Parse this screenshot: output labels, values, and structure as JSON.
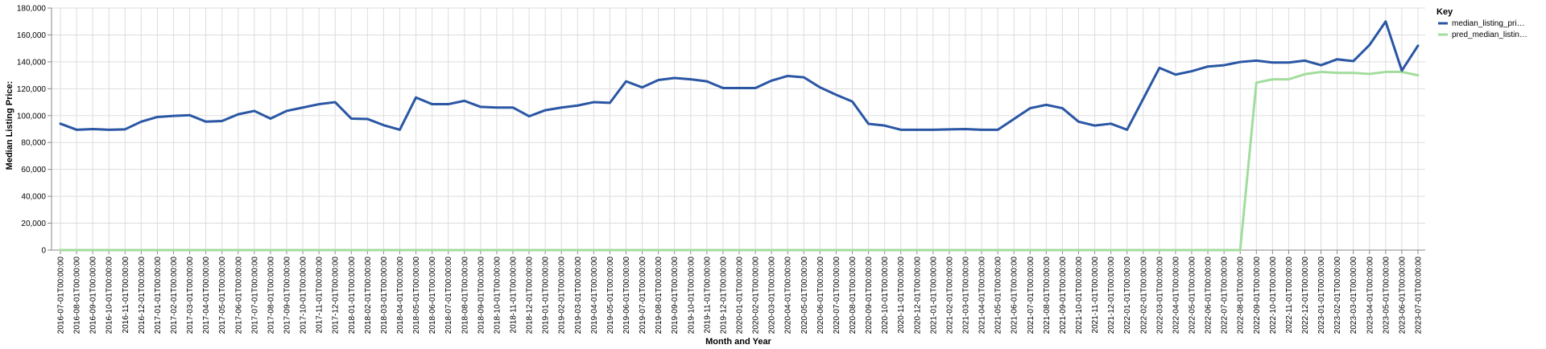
{
  "chart_data": {
    "type": "line",
    "title": "",
    "xlabel": "Month and Year",
    "ylabel": "Median Listing Price:",
    "ylim": [
      0,
      180000
    ],
    "yticks": [
      0,
      20000,
      40000,
      60000,
      80000,
      100000,
      120000,
      140000,
      160000,
      180000
    ],
    "ytick_labels": [
      "0",
      "20,000",
      "40,000",
      "60,000",
      "80,000",
      "100,000",
      "120,000",
      "140,000",
      "160,000",
      "180,000"
    ],
    "grid": true,
    "legend": {
      "title": "Key",
      "placement": "right"
    },
    "x": [
      "2016-07-01T00:00:00",
      "2016-08-01T00:00:00",
      "2016-09-01T00:00:00",
      "2016-10-01T00:00:00",
      "2016-11-01T00:00:00",
      "2016-12-01T00:00:00",
      "2017-01-01T00:00:00",
      "2017-02-01T00:00:00",
      "2017-03-01T00:00:00",
      "2017-04-01T00:00:00",
      "2017-05-01T00:00:00",
      "2017-06-01T00:00:00",
      "2017-07-01T00:00:00",
      "2017-08-01T00:00:00",
      "2017-09-01T00:00:00",
      "2017-10-01T00:00:00",
      "2017-11-01T00:00:00",
      "2017-12-01T00:00:00",
      "2018-01-01T00:00:00",
      "2018-02-01T00:00:00",
      "2018-03-01T00:00:00",
      "2018-04-01T00:00:00",
      "2018-05-01T00:00:00",
      "2018-06-01T00:00:00",
      "2018-07-01T00:00:00",
      "2018-08-01T00:00:00",
      "2018-09-01T00:00:00",
      "2018-10-01T00:00:00",
      "2018-11-01T00:00:00",
      "2018-12-01T00:00:00",
      "2019-01-01T00:00:00",
      "2019-02-01T00:00:00",
      "2019-03-01T00:00:00",
      "2019-04-01T00:00:00",
      "2019-05-01T00:00:00",
      "2019-06-01T00:00:00",
      "2019-07-01T00:00:00",
      "2019-08-01T00:00:00",
      "2019-09-01T00:00:00",
      "2019-10-01T00:00:00",
      "2019-11-01T00:00:00",
      "2019-12-01T00:00:00",
      "2020-01-01T00:00:00",
      "2020-02-01T00:00:00",
      "2020-03-01T00:00:00",
      "2020-04-01T00:00:00",
      "2020-05-01T00:00:00",
      "2020-06-01T00:00:00",
      "2020-07-01T00:00:00",
      "2020-08-01T00:00:00",
      "2020-09-01T00:00:00",
      "2020-10-01T00:00:00",
      "2020-11-01T00:00:00",
      "2020-12-01T00:00:00",
      "2021-01-01T00:00:00",
      "2021-02-01T00:00:00",
      "2021-03-01T00:00:00",
      "2021-04-01T00:00:00",
      "2021-05-01T00:00:00",
      "2021-06-01T00:00:00",
      "2021-07-01T00:00:00",
      "2021-08-01T00:00:00",
      "2021-09-01T00:00:00",
      "2021-10-01T00:00:00",
      "2021-11-01T00:00:00",
      "2021-12-01T00:00:00",
      "2022-01-01T00:00:00",
      "2022-02-01T00:00:00",
      "2022-03-01T00:00:00",
      "2022-04-01T00:00:00",
      "2022-05-01T00:00:00",
      "2022-06-01T00:00:00",
      "2022-07-01T00:00:00",
      "2022-08-01T00:00:00",
      "2022-09-01T00:00:00",
      "2022-10-01T00:00:00",
      "2022-11-01T00:00:00",
      "2022-12-01T00:00:00",
      "2023-01-01T00:00:00",
      "2023-02-01T00:00:00",
      "2023-03-01T00:00:00",
      "2023-04-01T00:00:00",
      "2023-05-01T00:00:00",
      "2023-06-01T00:00:00",
      "2023-07-01T00:00:00"
    ],
    "series": [
      {
        "name": "median_listing_pri…",
        "color": "#2a56a4",
        "values": [
          94000,
          89500,
          90000,
          89500,
          89800,
          95500,
          99000,
          99800,
          100300,
          95500,
          96000,
          101000,
          103500,
          97800,
          103500,
          106000,
          108500,
          110000,
          97800,
          97500,
          92900,
          89500,
          113500,
          108500,
          108500,
          111000,
          106500,
          106000,
          106000,
          99500,
          104000,
          106000,
          107500,
          110000,
          109500,
          125500,
          121000,
          126500,
          128000,
          127000,
          125500,
          120500,
          120500,
          120500,
          126000,
          129500,
          128500,
          121000,
          115500,
          110500,
          93900,
          92600,
          89500,
          89500,
          89500,
          89800,
          90000,
          89500,
          89500,
          97500,
          105500,
          108000,
          105500,
          95500,
          92600,
          94000,
          89500,
          112500,
          135500,
          130500,
          133000,
          136500,
          137500,
          139900,
          140900,
          139500,
          139500,
          140900,
          137500,
          141900,
          140500,
          152500,
          170000,
          133500,
          152000
        ]
      },
      {
        "name": "pred_median_listin…",
        "color": "#a2dd9d",
        "values": [
          0,
          0,
          0,
          0,
          0,
          0,
          0,
          0,
          0,
          0,
          0,
          0,
          0,
          0,
          0,
          0,
          0,
          0,
          0,
          0,
          0,
          0,
          0,
          0,
          0,
          0,
          0,
          0,
          0,
          0,
          0,
          0,
          0,
          0,
          0,
          0,
          0,
          0,
          0,
          0,
          0,
          0,
          0,
          0,
          0,
          0,
          0,
          0,
          0,
          0,
          0,
          0,
          0,
          0,
          0,
          0,
          0,
          0,
          0,
          0,
          0,
          0,
          0,
          0,
          0,
          0,
          0,
          0,
          0,
          0,
          0,
          0,
          0,
          0,
          124500,
          127000,
          127000,
          130800,
          132500,
          131800,
          131800,
          131000,
          132500,
          132500,
          130000
        ]
      }
    ]
  }
}
